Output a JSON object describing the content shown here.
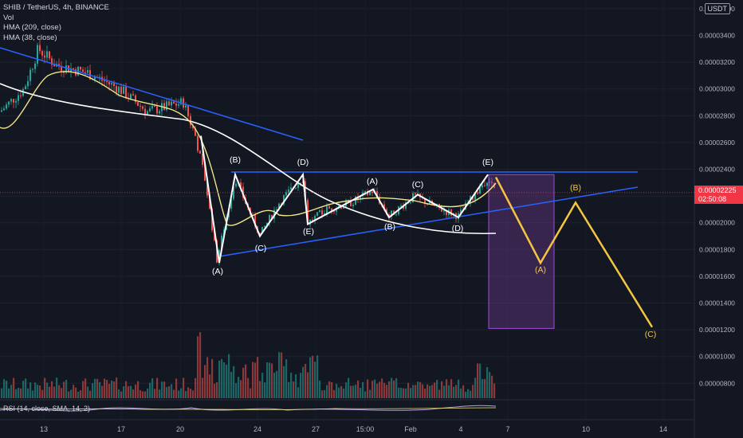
{
  "legend": {
    "symbol": "SHIB / TetherUS, 4h, BINANCE",
    "vol": "Vol",
    "hma1": "HMA (209, close)",
    "hma2": "HMA (38, close)"
  },
  "rsi_label": "RSI (14, close, SMA, 14, 2)",
  "currency": "USDT",
  "last_price": {
    "value": "0.00002225",
    "countdown": "02:50:08"
  },
  "colors": {
    "background": "#131722",
    "up": "#26a69a",
    "down": "#ef5350",
    "hma209": "#ffffff",
    "hma38": "#f0e68c",
    "trendline": "#2962ff",
    "wave": "#ffffff",
    "projection": "#f5c542",
    "box": "#7b3fa0",
    "price_tag": "#f23645"
  },
  "chart_data": {
    "type": "candlestick",
    "y_ticks": [
      "0.00003600",
      "0.00003400",
      "0.00003200",
      "0.00003000",
      "0.00002800",
      "0.00002600",
      "0.00002400",
      "0.00002200",
      "0.00002000",
      "0.00001800",
      "0.00001600",
      "0.00001400",
      "0.00001200",
      "0.00001000",
      "0.00000800"
    ],
    "x_ticks": [
      "13",
      "17",
      "20",
      "24",
      "27",
      "15:00",
      "Feb",
      "4",
      "7",
      "10",
      "14"
    ],
    "wave_labels_completed": [
      "(A)",
      "(B)",
      "(C)",
      "(D)",
      "(E)",
      "(A)",
      "(B)",
      "(C)",
      "(D)",
      "(E)"
    ],
    "wave_labels_projected": [
      "(A)",
      "(B)",
      "(C)"
    ],
    "wave_points": [
      {
        "label": "(A)",
        "price": 1.7e-05
      },
      {
        "label": "(B)",
        "price": 2.36e-05
      },
      {
        "label": "(C)",
        "price": 1.9e-05
      },
      {
        "label": "(D)",
        "price": 2.36e-05
      },
      {
        "label": "(E)",
        "price": 1.99e-05
      },
      {
        "label": "(A)",
        "price": 2.25e-05
      },
      {
        "label": "(B)",
        "price": 2.04e-05
      },
      {
        "label": "(C)",
        "price": 2.21e-05
      },
      {
        "label": "(D)",
        "price": 2.04e-05
      },
      {
        "label": "(E)",
        "price": 2.36e-05
      }
    ],
    "projection_points": [
      {
        "label": "(A)",
        "price": 1.7e-05
      },
      {
        "label": "(B)",
        "price": 2.15e-05
      },
      {
        "label": "(C)",
        "price": 1.22e-05
      }
    ],
    "projection_box": {
      "top": 2.36e-05,
      "bottom": 1.21e-05
    },
    "last_price": 2.225e-05
  }
}
